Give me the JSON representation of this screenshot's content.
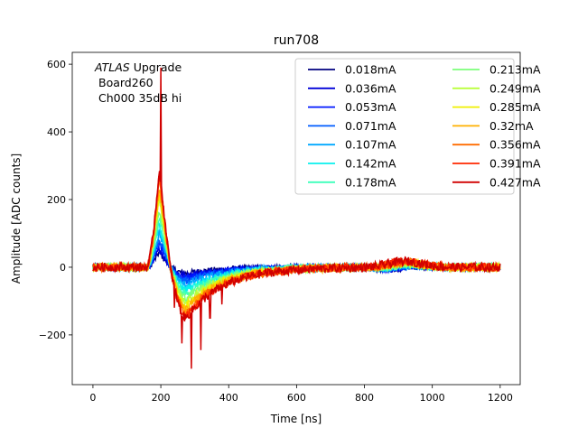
{
  "chart_data": {
    "type": "line",
    "title": "run708",
    "xlabel": "Time [ns]",
    "ylabel": "Amplitude [ADC counts]",
    "xlim": [
      -61,
      1259
    ],
    "ylim": [
      -347,
      635
    ],
    "xticks": [
      0,
      200,
      400,
      600,
      800,
      1000,
      1200
    ],
    "yticks": [
      -200,
      0,
      200,
      400,
      600
    ],
    "ytick_labels": [
      "−200",
      "0",
      "200",
      "400",
      "600"
    ],
    "grid": false,
    "legend_placement": "top-right",
    "legend_columns": 2,
    "annotation": {
      "italic": "ATLAS",
      "line1": " Upgrade",
      "line2": "Board260",
      "line3": "Ch000 35dB hi"
    },
    "x_range": [
      0,
      1200
    ],
    "series": [
      {
        "name": "0.018mA",
        "color": "#000080",
        "peak": 45,
        "undershoot": -18
      },
      {
        "name": "0.036mA",
        "color": "#0000d8",
        "peak": 55,
        "undershoot": -25
      },
      {
        "name": "0.053mA",
        "color": "#0018ff",
        "peak": 70,
        "undershoot": -32
      },
      {
        "name": "0.071mA",
        "color": "#005cff",
        "peak": 85,
        "undershoot": -40
      },
      {
        "name": "0.107mA",
        "color": "#00a8ff",
        "peak": 105,
        "undershoot": -52
      },
      {
        "name": "0.142mA",
        "color": "#08f0ee",
        "peak": 130,
        "undershoot": -65
      },
      {
        "name": "0.178mA",
        "color": "#3cffba",
        "peak": 150,
        "undershoot": -78
      },
      {
        "name": "0.213mA",
        "color": "#7cff7a",
        "peak": 175,
        "undershoot": -90
      },
      {
        "name": "0.249mA",
        "color": "#baff3c",
        "peak": 200,
        "undershoot": -102
      },
      {
        "name": "0.285mA",
        "color": "#f0f000",
        "peak": 220,
        "undershoot": -115
      },
      {
        "name": "0.32mA",
        "color": "#ffb000",
        "peak": 240,
        "undershoot": -125
      },
      {
        "name": "0.356mA",
        "color": "#ff6c00",
        "peak": 258,
        "undershoot": -135
      },
      {
        "name": "0.391mA",
        "color": "#ff2800",
        "peak": 275,
        "undershoot": -145
      },
      {
        "name": "0.427mA",
        "color": "#d00000",
        "peak": 290,
        "undershoot": -150,
        "spikes": [
          [
            200,
            590
          ],
          [
            240,
            -120
          ],
          [
            262,
            -225
          ],
          [
            290,
            -300
          ],
          [
            318,
            -245
          ],
          [
            345,
            -150
          ],
          [
            380,
            -110
          ]
        ]
      }
    ]
  }
}
